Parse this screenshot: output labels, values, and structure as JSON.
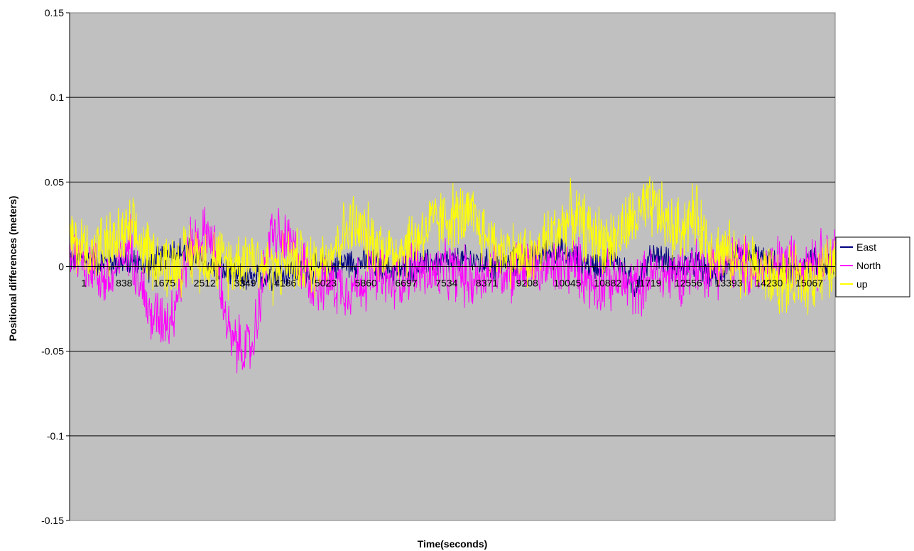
{
  "chart_data": {
    "type": "line",
    "title": "",
    "xlabel": "Time(seconds)",
    "ylabel": "Positional differences (meters)",
    "ylim": [
      -0.15,
      0.15
    ],
    "ytick_values": [
      -0.15,
      -0.1,
      -0.05,
      0,
      0.05,
      0.1,
      0.15
    ],
    "ytick_labels": [
      "-0.15",
      "-0.1",
      "-0.05",
      "0",
      "0.05",
      "0.1",
      "0.15"
    ],
    "xlim": [
      1,
      15900
    ],
    "xtick_values": [
      1,
      838,
      1675,
      2512,
      3349,
      4186,
      5023,
      5860,
      6697,
      7534,
      8371,
      9208,
      10045,
      10882,
      11719,
      12556,
      13393,
      14230,
      15067
    ],
    "xtick_labels": [
      "1",
      "838",
      "1675",
      "2512",
      "3349",
      "4186",
      "5023",
      "5860",
      "6697",
      "7534",
      "8371",
      "9208",
      "10045",
      "10882",
      "11719",
      "12556",
      "13393",
      "14230",
      "15067"
    ],
    "grid": true,
    "plot_background": "#c0c0c0",
    "legend_position": "right",
    "x": [
      1,
      400,
      838,
      1250,
      1675,
      2100,
      2512,
      2930,
      3349,
      3770,
      4186,
      4600,
      5023,
      5440,
      5860,
      6280,
      6697,
      7110,
      7534,
      7950,
      8371,
      8790,
      9208,
      9620,
      10045,
      10460,
      10882,
      11300,
      11719,
      12140,
      12556,
      12970,
      13393,
      13810,
      14230,
      14650,
      15067,
      15480,
      15900
    ],
    "series": [
      {
        "name": "East",
        "color": "#000080",
        "values": [
          0.005,
          0.004,
          0.002,
          0.003,
          0.0,
          0.01,
          0.008,
          0.0,
          -0.005,
          -0.008,
          -0.005,
          -0.003,
          -0.002,
          0.0,
          0.003,
          0.002,
          -0.003,
          0.0,
          0.002,
          0.003,
          0.004,
          0.0,
          0.002,
          0.004,
          0.01,
          0.005,
          0.0,
          0.006,
          -0.012,
          0.008,
          0.0,
          0.002,
          -0.005,
          0.004,
          0.006,
          0.0,
          -0.003,
          0.002,
          0.0
        ]
      },
      {
        "name": "North",
        "color": "#ff00ff",
        "values": [
          0.01,
          0.002,
          -0.01,
          0.015,
          -0.03,
          -0.03,
          0.012,
          0.02,
          -0.045,
          -0.05,
          0.02,
          0.012,
          -0.008,
          -0.01,
          -0.012,
          -0.005,
          -0.01,
          0.0,
          -0.005,
          -0.003,
          -0.008,
          0.0,
          -0.003,
          0.0,
          -0.002,
          0.002,
          -0.01,
          -0.008,
          -0.012,
          -0.005,
          -0.005,
          0.0,
          0.0,
          0.003,
          -0.002,
          0.0,
          0.003,
          0.005,
          0.008
        ]
      },
      {
        "name": "up",
        "color": "#ffff00",
        "values": [
          0.015,
          0.01,
          0.012,
          0.02,
          0.008,
          0.0,
          0.008,
          0.005,
          0.002,
          0.008,
          -0.003,
          0.005,
          0.0,
          0.01,
          0.025,
          0.015,
          0.008,
          0.015,
          0.025,
          0.03,
          0.028,
          0.012,
          0.008,
          0.005,
          0.02,
          0.03,
          0.018,
          0.015,
          0.028,
          0.035,
          0.02,
          0.03,
          0.01,
          0.005,
          0.0,
          -0.008,
          -0.01,
          -0.005,
          0.0
        ]
      }
    ]
  }
}
